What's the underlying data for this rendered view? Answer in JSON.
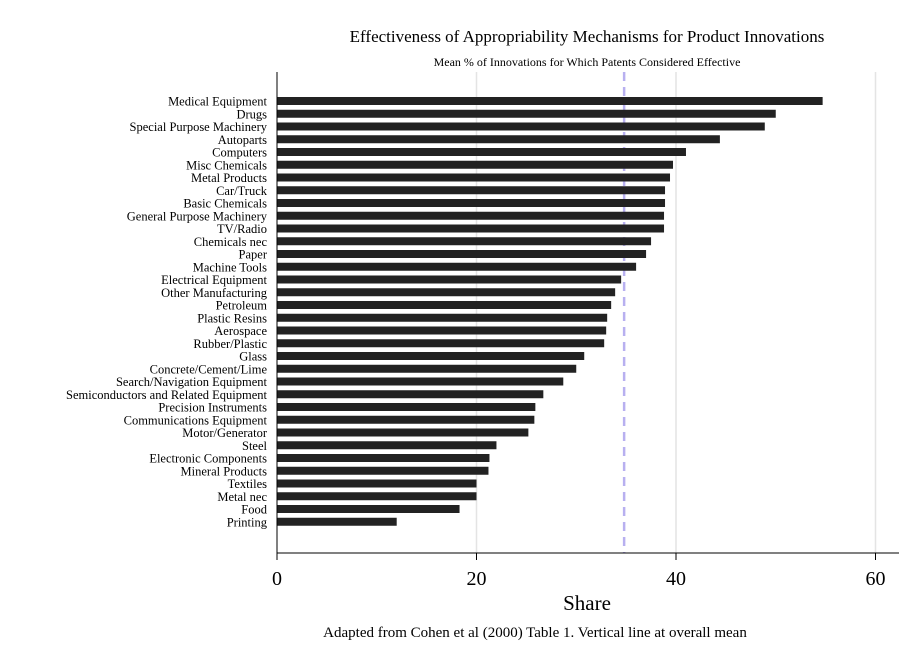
{
  "chart_data": {
    "type": "bar",
    "orientation": "horizontal",
    "title": "Effectiveness of  Appropriability Mechanisms for Product Innovations",
    "subtitle": "Mean % of Innovations for Which Patents Considered Effective",
    "xlabel": "Share",
    "note": "Adapted from Cohen et al (2000) Table 1. Vertical line at overall mean",
    "xlim": [
      0,
      62
    ],
    "xticks": [
      0,
      20,
      40,
      60
    ],
    "grid": true,
    "reference_line": {
      "value": 34.8,
      "style": "dashed",
      "color": "#b8b0f0"
    },
    "bar_color": "#222222",
    "categories": [
      "Medical Equipment",
      "Drugs",
      "Special Purpose Machinery",
      "Autoparts",
      "Computers",
      "Misc Chemicals",
      "Metal Products",
      "Car/Truck",
      "Basic Chemicals",
      "General Purpose Machinery",
      "TV/Radio",
      "Chemicals nec",
      "Paper",
      "Machine Tools",
      "Electrical Equipment",
      "Other Manufacturing",
      "Petroleum",
      "Plastic Resins",
      "Aerospace",
      "Rubber/Plastic",
      "Glass",
      "Concrete/Cement/Lime",
      "Search/Navigation Equipment",
      "Semiconductors and Related Equipment",
      "Precision Instruments",
      "Communications Equipment",
      "Motor/Generator",
      "Steel",
      "Electronic Components",
      "Mineral Products",
      "Textiles",
      "Metal nec",
      "Food",
      "Printing"
    ],
    "values": [
      54.7,
      50.0,
      48.9,
      44.4,
      41.0,
      39.7,
      39.4,
      38.9,
      38.9,
      38.8,
      38.8,
      37.5,
      37.0,
      36.0,
      34.5,
      33.9,
      33.5,
      33.1,
      33.0,
      32.8,
      30.8,
      30.0,
      28.7,
      26.7,
      25.9,
      25.8,
      25.2,
      22.0,
      21.3,
      21.2,
      20.0,
      20.0,
      18.3,
      12.0
    ]
  }
}
